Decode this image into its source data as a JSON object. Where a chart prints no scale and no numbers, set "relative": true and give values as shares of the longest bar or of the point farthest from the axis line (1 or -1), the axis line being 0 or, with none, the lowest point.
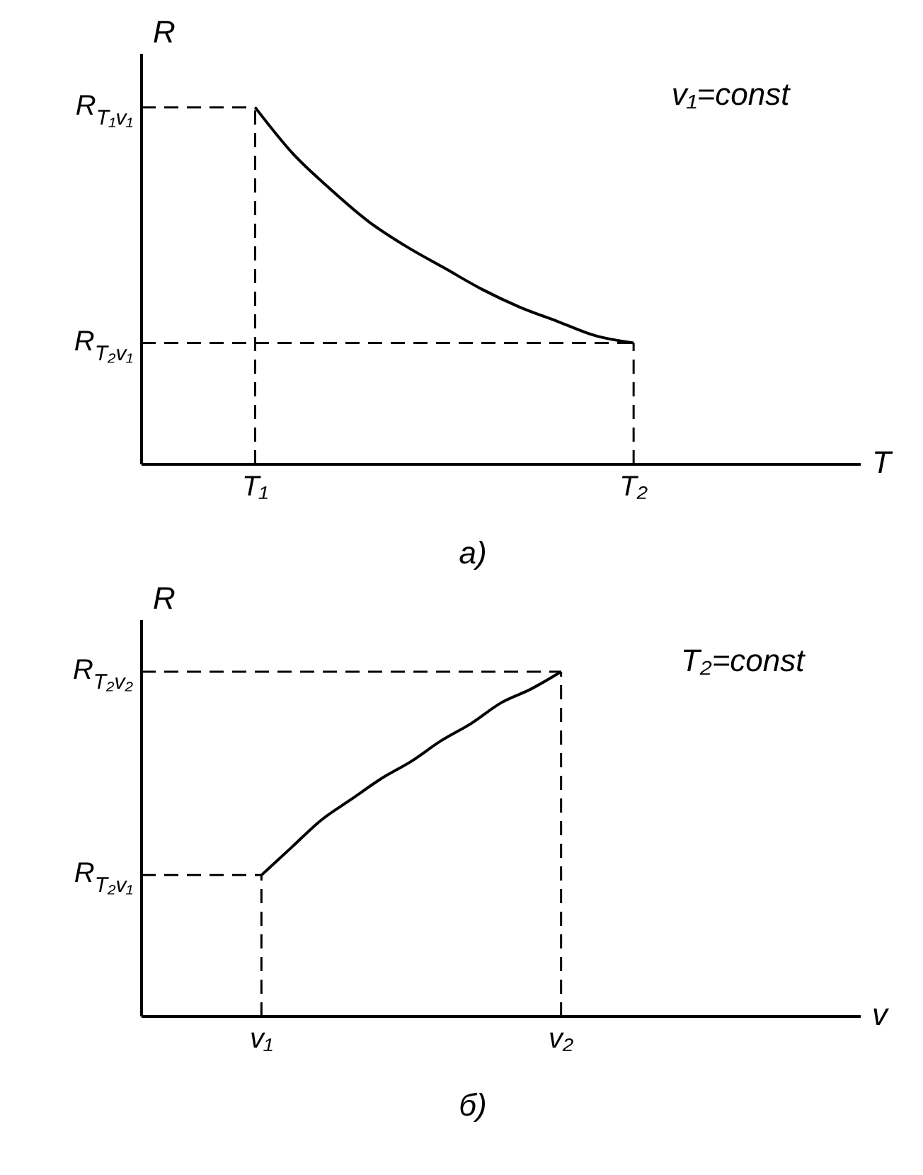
{
  "chart_data": [
    {
      "type": "line",
      "title": "а)",
      "xlabel": "T",
      "ylabel": "R",
      "relative": true,
      "marker": "none",
      "color": "#000000",
      "categories": [
        null,
        null,
        null,
        "T₁",
        null,
        null,
        null,
        null,
        null,
        null,
        null,
        null,
        null,
        "T₂",
        null,
        null,
        null,
        null,
        null,
        null
      ],
      "values": [
        null,
        null,
        null,
        1,
        0.87,
        0.77,
        0.68,
        0.61,
        0.55,
        0.49,
        0.44,
        0.4,
        0.36,
        0.34,
        null,
        null,
        null,
        null,
        null,
        null
      ],
      "ref_lines": [
        {
          "axis": "y",
          "value": 1,
          "label": "R$_{T₁v₁}$",
          "line_style": "dashed"
        },
        {
          "axis": "y",
          "value": 0.34,
          "label": "R$_{T₂v₁}$",
          "line_style": "dashed"
        },
        {
          "axis": "x",
          "value": "T₁",
          "line_style": "dashed"
        },
        {
          "axis": "x",
          "value": "T₂",
          "line_style": "dashed"
        }
      ],
      "annotations": [
        "v₁=const"
      ]
    },
    {
      "type": "line",
      "title": "б)",
      "xlabel": "v",
      "ylabel": "R",
      "relative": true,
      "marker": "none",
      "color": "#000000",
      "categories": [
        null,
        null,
        null,
        null,
        "v₁",
        null,
        null,
        null,
        null,
        null,
        null,
        null,
        null,
        null,
        "v₂",
        null,
        null,
        null,
        null,
        null,
        null,
        null,
        null,
        null,
        null
      ],
      "values": [
        null,
        null,
        null,
        null,
        0.41,
        0.49,
        0.57,
        0.63,
        0.69,
        0.74,
        0.8,
        0.85,
        0.91,
        0.95,
        1,
        null,
        null,
        null,
        null,
        null,
        null,
        null,
        null,
        null,
        null
      ],
      "ref_lines": [
        {
          "axis": "y",
          "value": 0.41,
          "label": "R$_{T₂v₁}$",
          "line_style": "dashed"
        },
        {
          "axis": "y",
          "value": 1,
          "label": "R$_{T₂v₂}$",
          "line_style": "dashed"
        },
        {
          "axis": "x",
          "value": "v₁",
          "line_style": "dashed"
        },
        {
          "axis": "x",
          "value": "v₂",
          "line_style": "dashed"
        }
      ],
      "annotations": [
        "T₂=const"
      ]
    }
  ]
}
